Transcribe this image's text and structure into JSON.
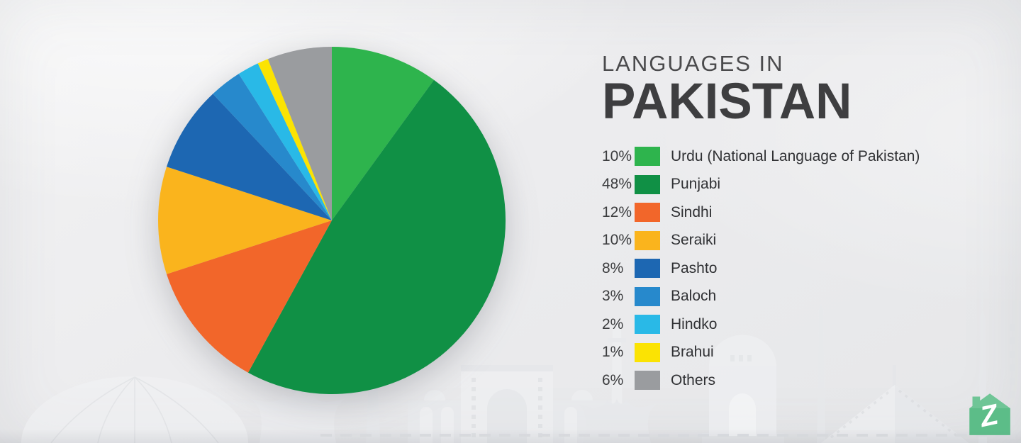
{
  "title": {
    "line1": "LANGUAGES IN",
    "line2": "PAKISTAN"
  },
  "chart_data": {
    "type": "pie",
    "title": "Languages in Pakistan",
    "start_angle_deg": 0,
    "direction": "clockwise",
    "legend_position": "right",
    "labels": [
      "Urdu (National Language of Pakistan)",
      "Punjabi",
      "Sindhi",
      "Seraiki",
      "Pashto",
      "Baloch",
      "Hindko",
      "Brahui",
      "Others"
    ],
    "values": [
      10,
      48,
      12,
      10,
      8,
      3,
      2,
      1,
      6
    ],
    "percent_labels": [
      "10%",
      "48%",
      "12%",
      "10%",
      "8%",
      "3%",
      "2%",
      "1%",
      "6%"
    ],
    "colors": [
      "#2eb44d",
      "#109045",
      "#f2662a",
      "#fab41d",
      "#1d67b2",
      "#2789cc",
      "#29b9e7",
      "#fbe303",
      "#9a9c9f"
    ]
  },
  "logo": {
    "icon": "zameen-house-logo",
    "letter": "Z",
    "house_color": "#5cbd88",
    "letter_color": "#ffffff"
  }
}
